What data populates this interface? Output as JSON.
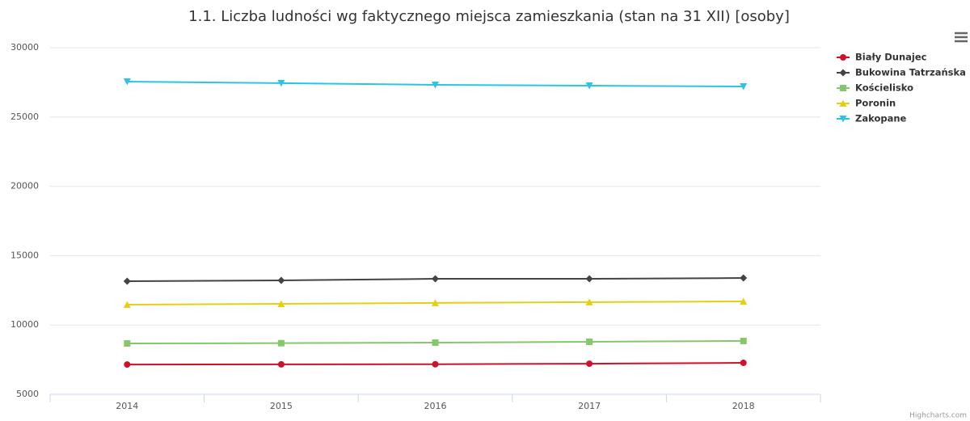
{
  "chart_data": {
    "type": "line",
    "title": "1.1. Liczba ludności wg faktycznego miejsca zamieszkania (stan na 31 XII) [osoby]",
    "categories": [
      "2014",
      "2015",
      "2016",
      "2017",
      "2018"
    ],
    "series": [
      {
        "name": "Biały Dunajec",
        "color": "#d0112b",
        "marker": "circle",
        "values": [
          7150,
          7160,
          7170,
          7210,
          7270
        ]
      },
      {
        "name": "Bukowina Tatrzańska",
        "color": "#434348",
        "marker": "diamond",
        "values": [
          13160,
          13220,
          13330,
          13330,
          13390
        ]
      },
      {
        "name": "Kościelisko",
        "color": "#84c86a",
        "marker": "square",
        "values": [
          8670,
          8690,
          8730,
          8790,
          8850
        ]
      },
      {
        "name": "Poronin",
        "color": "#e5cf15",
        "marker": "triangle",
        "values": [
          11470,
          11530,
          11590,
          11650,
          11700
        ]
      },
      {
        "name": "Zakopane",
        "color": "#2bc4e4",
        "marker": "triangle-down",
        "values": [
          27550,
          27440,
          27320,
          27260,
          27200
        ]
      }
    ],
    "ylim": [
      5000,
      30000
    ],
    "yticks": [
      5000,
      10000,
      15000,
      20000,
      25000,
      30000
    ],
    "grid": true,
    "legend": "top-right",
    "credits": "Highcharts.com"
  }
}
